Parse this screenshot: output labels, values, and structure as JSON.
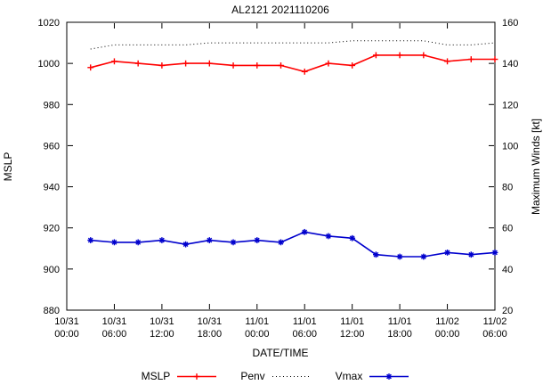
{
  "chart_data": {
    "type": "line",
    "title": "AL2121 2021110206",
    "xlabel": "DATE/TIME",
    "ylabel_left": "MSLP",
    "ylabel_right": "Maximum Winds [kt]",
    "ylim_left": [
      880,
      1020
    ],
    "ylim_right": [
      20,
      160
    ],
    "grid": false,
    "legend_position": "bottom-center",
    "y_ticks_left": [
      880,
      900,
      920,
      940,
      960,
      980,
      1000,
      1020
    ],
    "y_ticks_right": [
      20,
      40,
      60,
      80,
      100,
      120,
      140,
      160
    ],
    "x_range_hours": [
      0,
      54
    ],
    "x_ticks": [
      {
        "h": 0,
        "date": "10/31",
        "time": "00:00"
      },
      {
        "h": 6,
        "date": "10/31",
        "time": "06:00"
      },
      {
        "h": 12,
        "date": "10/31",
        "time": "12:00"
      },
      {
        "h": 18,
        "date": "10/31",
        "time": "18:00"
      },
      {
        "h": 24,
        "date": "11/01",
        "time": "00:00"
      },
      {
        "h": 30,
        "date": "11/01",
        "time": "06:00"
      },
      {
        "h": 36,
        "date": "11/01",
        "time": "12:00"
      },
      {
        "h": 42,
        "date": "11/01",
        "time": "18:00"
      },
      {
        "h": 48,
        "date": "11/02",
        "time": "00:00"
      },
      {
        "h": 54,
        "date": "11/02",
        "time": "06:00"
      }
    ],
    "x_hours": [
      3,
      6,
      9,
      12,
      15,
      18,
      21,
      24,
      27,
      30,
      33,
      36,
      39,
      42,
      45,
      48,
      51,
      54
    ],
    "series": [
      {
        "name": "MSLP",
        "axis": "left",
        "color": "#ff0000",
        "marker": "plus",
        "line": "solid",
        "values": [
          998,
          1001,
          1000,
          999,
          1000,
          1000,
          999,
          999,
          999,
          996,
          1000,
          999,
          1004,
          1004,
          1004,
          1001,
          1002,
          1002
        ]
      },
      {
        "name": "Penv",
        "axis": "left",
        "color": "#000000",
        "marker": "none",
        "line": "dotted",
        "values": [
          1007,
          1009,
          1009,
          1009,
          1009,
          1010,
          1010,
          1010,
          1010,
          1010,
          1010,
          1011,
          1011,
          1011,
          1011,
          1009,
          1009,
          1010
        ]
      },
      {
        "name": "Vmax",
        "axis": "right",
        "color": "#0000cd",
        "marker": "asterisk",
        "line": "solid",
        "values": [
          54,
          53,
          53,
          54,
          52,
          54,
          53,
          54,
          53,
          58,
          56,
          55,
          47,
          46,
          46,
          48,
          47,
          48
        ]
      }
    ]
  }
}
